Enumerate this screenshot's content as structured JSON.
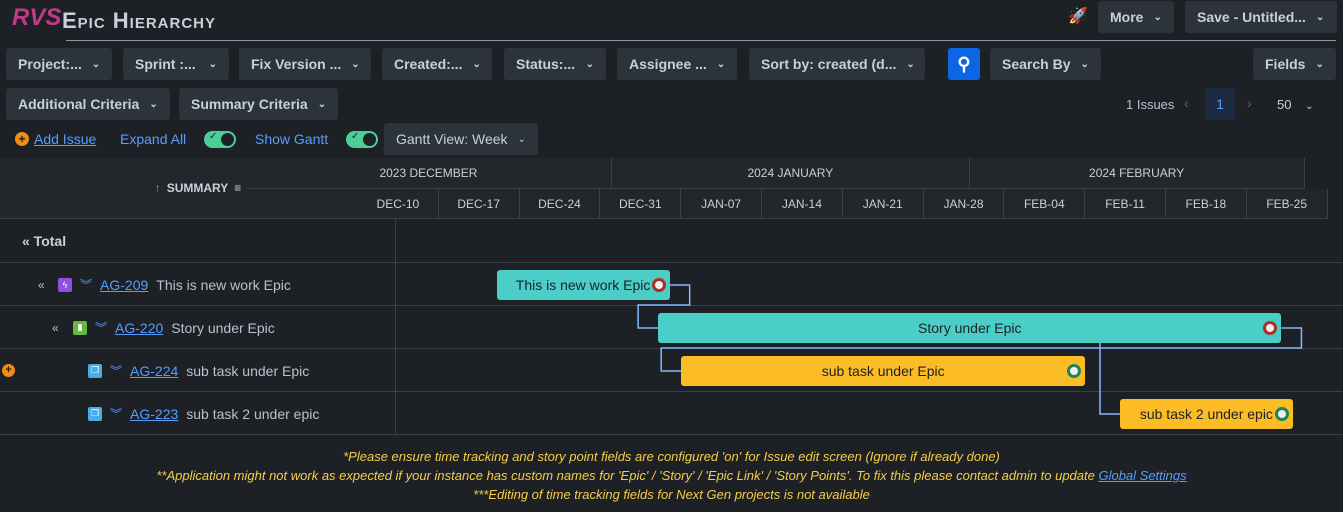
{
  "app": {
    "logo": "RVS",
    "title": "Epic Hierarchy"
  },
  "header": {
    "more": "More",
    "save": "Save - Untitled..."
  },
  "filters": [
    "Project:...",
    "Sprint :...",
    "Fix Version ...",
    "Created:...",
    "Status:...",
    "Assignee ...",
    "Sort by: created (d..."
  ],
  "search_by": "Search By",
  "fields": "Fields",
  "criteria": [
    "Additional Criteria",
    "Summary Criteria"
  ],
  "pagination": {
    "issues": "1 Issues",
    "page": "1",
    "page_size": "50"
  },
  "toolbar": {
    "add_issue": "Add Issue",
    "expand_all": "Expand All",
    "show_gantt": "Show Gantt",
    "gantt_view": "Gantt View: Week",
    "expand_all_on": true,
    "show_gantt_on": true
  },
  "table": {
    "summary_header": "SUMMARY",
    "total": "« Total",
    "rows": [
      {
        "key": "AG-209",
        "summary": "This is new work Epic",
        "type": "epic",
        "start": "2023-12-22",
        "end": "2024-01-06",
        "bar_color": "#4bcec8",
        "status_color": "#ae2e24"
      },
      {
        "key": "AG-220",
        "summary": "Story under Epic",
        "type": "story",
        "start": "2024-01-05",
        "end": "2024-02-28",
        "bar_color": "#4bcec8",
        "status_color": "#ae2e24"
      },
      {
        "key": "AG-224",
        "summary": "sub task under Epic",
        "type": "subtask",
        "start": "2024-01-07",
        "end": "2024-02-11",
        "bar_color": "#fbbc26",
        "status_color": "#1f845a"
      },
      {
        "key": "AG-223",
        "summary": "sub task 2 under epic",
        "type": "subtask",
        "start": "2024-02-14",
        "end": "2024-02-29",
        "bar_color": "#fbbc26",
        "status_color": "#1f845a"
      }
    ]
  },
  "gantt": {
    "months": [
      "2023 DECEMBER",
      "2024 JANUARY",
      "2024 FEBRUARY"
    ],
    "weeks": [
      "DEC-10",
      "DEC-17",
      "DEC-24",
      "DEC-31",
      "JAN-07",
      "JAN-14",
      "JAN-21",
      "JAN-28",
      "FEB-04",
      "FEB-11",
      "FEB-18",
      "FEB-25"
    ]
  },
  "notes": {
    "n1": "*Please ensure time tracking and story point fields are configured 'on' for Issue edit screen (Ignore if already done)",
    "n2": "**Application might not work as expected if your instance has custom names for 'Epic' / 'Story' / 'Epic Link' / 'Story Points'. To fix this please contact admin to update ",
    "n2_link": "Global Settings",
    "n3": "***Editing of time tracking fields for Next Gen projects is not available"
  }
}
